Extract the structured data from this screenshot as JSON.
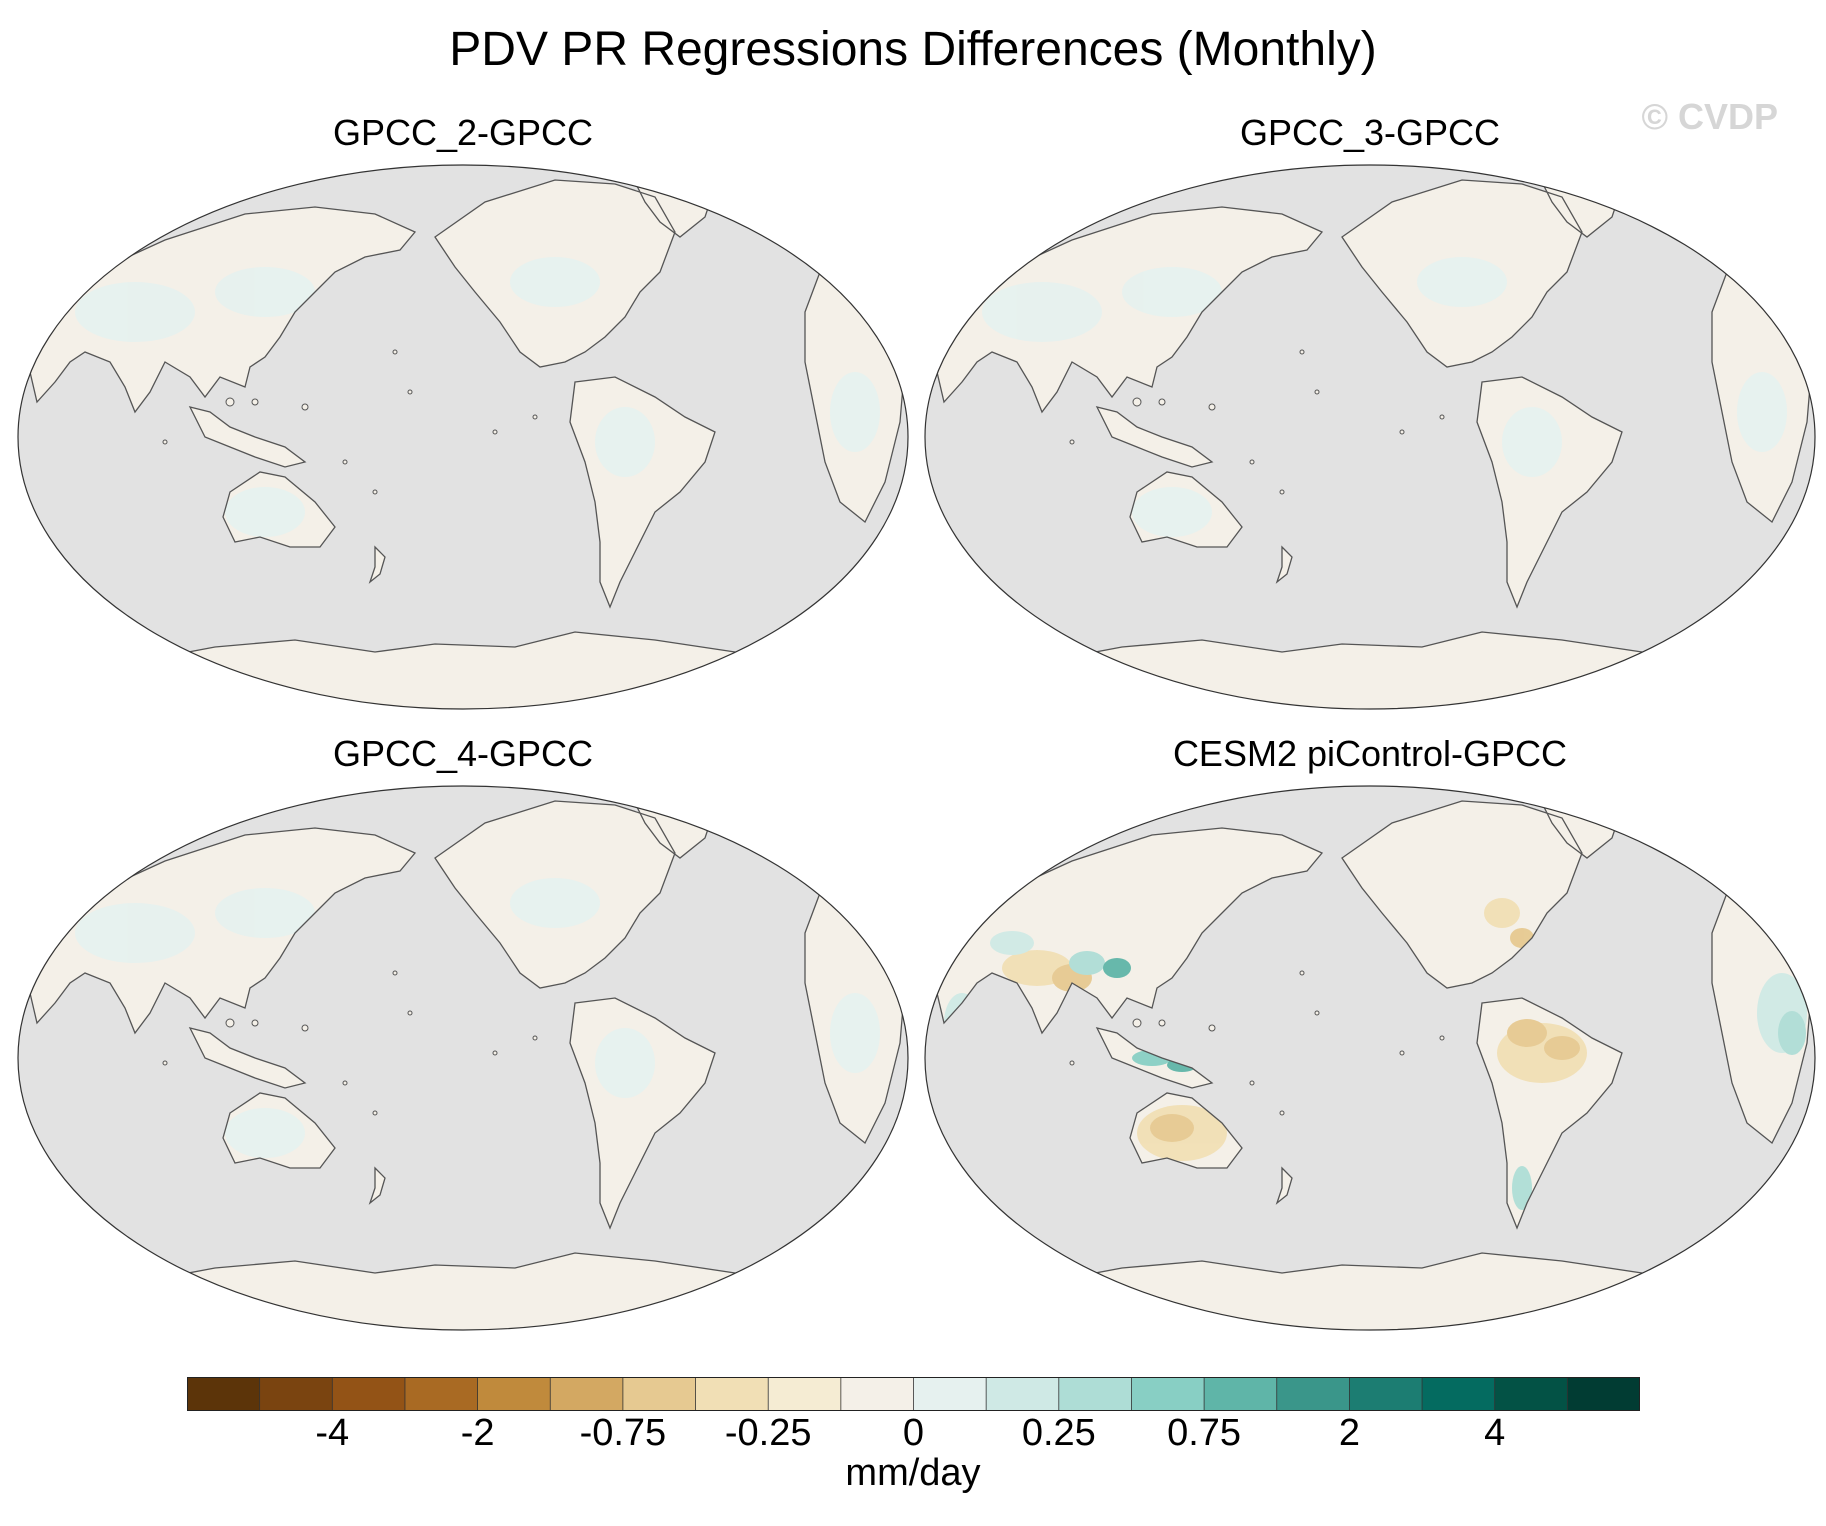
{
  "title": "PDV PR Regressions Differences (Monthly)",
  "watermark": "© CVDP",
  "panels": [
    {
      "title": "GPCC_2-GPCC",
      "pattern": "weak"
    },
    {
      "title": "GPCC_3-GPCC",
      "pattern": "weak"
    },
    {
      "title": "GPCC_4-GPCC",
      "pattern": "weak"
    },
    {
      "title": "CESM2 piControl-GPCC",
      "pattern": "strong"
    }
  ],
  "colors": {
    "ocean": "#e2e2e2",
    "coast": "#555555",
    "land_near_zero_dry": "#f4f0e8",
    "land_near_zero_wet": "#e6f1ef"
  },
  "colorbar": {
    "colors": [
      "#5c3409",
      "#7a4410",
      "#935316",
      "#a96a23",
      "#c08a3c",
      "#d3a862",
      "#e6c991",
      "#f1dfb5",
      "#f5ecd3",
      "#f4f0e8",
      "#e6f1ef",
      "#cfe9e5",
      "#aeddd6",
      "#88cfc4",
      "#5fb5a8",
      "#3a968a",
      "#1c7d72",
      "#046b60",
      "#035245",
      "#013c33"
    ],
    "tick_labels": [
      "-4",
      "-2",
      "-0.75",
      "-0.25",
      "0",
      "0.25",
      "0.75",
      "2",
      "4"
    ],
    "units": "mm/day"
  }
}
